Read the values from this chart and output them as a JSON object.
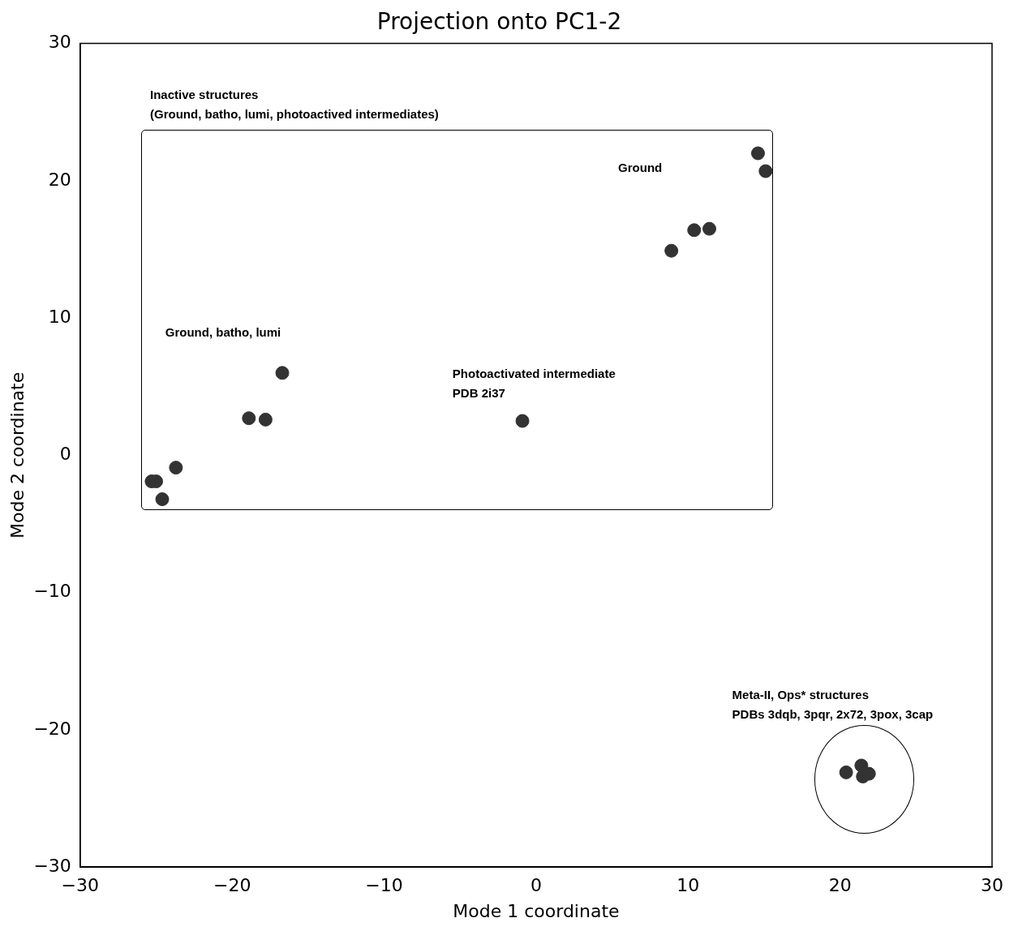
{
  "chart_data": {
    "type": "scatter",
    "title": "Projection onto PC1-2",
    "xlabel": "Mode 1 coordinate",
    "ylabel": "Mode 2 coordinate",
    "xlim": [
      -30,
      30
    ],
    "xticks": [
      -30,
      -20,
      -10,
      0,
      10,
      20,
      30
    ],
    "ylim": [
      -30,
      30
    ],
    "yticks": [
      -30,
      -20,
      -10,
      0,
      10,
      20,
      30
    ],
    "grid": false,
    "legend": false,
    "marker": "circle",
    "series": [
      {
        "color": "#333333",
        "x": [
          14.6,
          15.1,
          10.4,
          11.4,
          8.9,
          -16.7,
          -18.9,
          -17.8,
          -0.9,
          -23.7,
          -25.3,
          -25.0,
          -24.6,
          20.4,
          21.4,
          21.5,
          21.9
        ],
        "values": [
          22.0,
          20.7,
          16.4,
          16.5,
          14.9,
          6.0,
          2.7,
          2.6,
          2.5,
          -0.9,
          -1.9,
          -1.9,
          -3.2,
          -23.1,
          -22.6,
          -23.4,
          -23.2
        ]
      }
    ],
    "annotations": [
      "Inactive structures\n(Ground, batho, lumi, photoactived intermediates)",
      "Ground",
      "Ground, batho, lumi",
      "Photoactivated intermediate\nPDB 2i37",
      "Meta-II, Ops* structures\nPDBs 3dqb, 3pqr, 2x72, 3pox, 3cap"
    ]
  }
}
